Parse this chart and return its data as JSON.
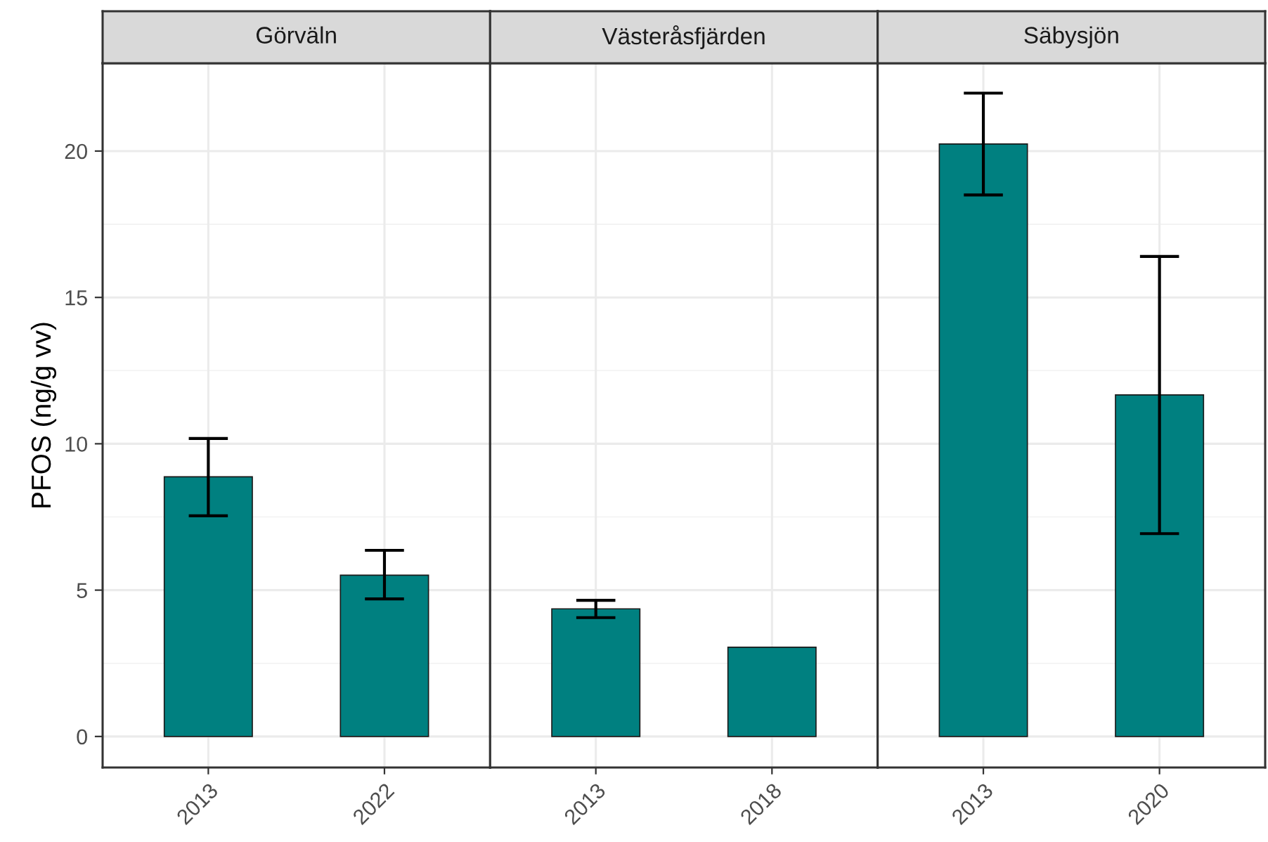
{
  "chart_data": [
    {
      "type": "bar",
      "title": "Görväln",
      "ylabel": "PFOS (ng/g vv)",
      "categories": [
        "2013",
        "2022"
      ],
      "values": [
        8.87,
        5.51
      ],
      "errors": [
        [
          7.54,
          10.18
        ],
        [
          4.7,
          6.36
        ]
      ],
      "color": "#008080",
      "ylim": [
        -1.06,
        23
      ],
      "yticks": [
        0,
        5,
        10,
        15,
        20
      ],
      "grid": true
    },
    {
      "type": "bar",
      "title": "Västeråsfjärden",
      "categories": [
        "2013",
        "2018"
      ],
      "values": [
        4.36,
        3.05
      ],
      "errors": [
        [
          4.06,
          4.65
        ],
        null
      ],
      "color": "#008080",
      "ylim": [
        -1.06,
        23
      ],
      "yticks": [
        0,
        5,
        10,
        15,
        20
      ],
      "grid": true,
      "tick_labels": "x"
    },
    {
      "type": "bar",
      "title": "Säbysjön",
      "categories": [
        "2013",
        "2020"
      ],
      "values": [
        20.24,
        11.67
      ],
      "errors": [
        [
          18.5,
          21.98
        ],
        [
          6.93,
          16.4
        ]
      ],
      "color": "#008080",
      "ylim": [
        -1.06,
        23
      ],
      "yticks": [
        0,
        5,
        10,
        15,
        20
      ],
      "grid": true,
      "tick_labels": "x"
    }
  ]
}
